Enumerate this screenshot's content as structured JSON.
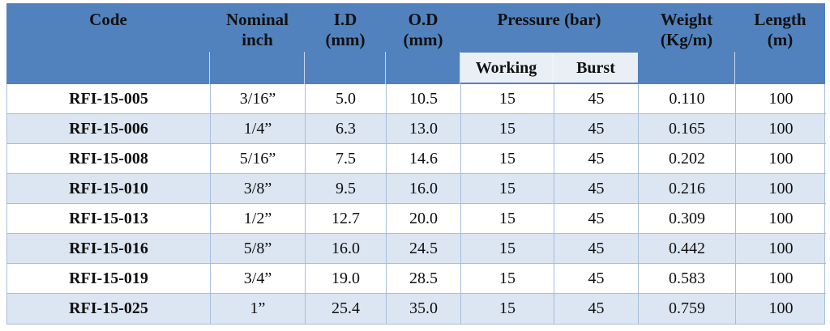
{
  "table": {
    "title": "hose-specification-table",
    "columns": {
      "code": {
        "label": "Code"
      },
      "nominal": {
        "line1": "Nominal",
        "line2": "inch"
      },
      "id": {
        "line1": "I.D",
        "line2": "(mm)"
      },
      "od": {
        "line1": "O.D",
        "line2": "(mm)"
      },
      "pressure": {
        "label": "Pressure (bar)",
        "sub": {
          "working": "Working",
          "burst": "Burst"
        }
      },
      "weight": {
        "line1": "Weight",
        "line2": "(Kg/m)"
      },
      "length": {
        "line1": "Length",
        "line2": "(m)"
      }
    },
    "rows": [
      {
        "code": "RFI-15-005",
        "nominal_inch": "3/16”",
        "id_mm": "5.0",
        "od_mm": "10.5",
        "working": "15",
        "burst": "45",
        "weight_kg_m": "0.110",
        "length_m": "100"
      },
      {
        "code": "RFI-15-006",
        "nominal_inch": "1/4”",
        "id_mm": "6.3",
        "od_mm": "13.0",
        "working": "15",
        "burst": "45",
        "weight_kg_m": "0.165",
        "length_m": "100"
      },
      {
        "code": "RFI-15-008",
        "nominal_inch": "5/16”",
        "id_mm": "7.5",
        "od_mm": "14.6",
        "working": "15",
        "burst": "45",
        "weight_kg_m": "0.202",
        "length_m": "100"
      },
      {
        "code": "RFI-15-010",
        "nominal_inch": "3/8”",
        "id_mm": "9.5",
        "od_mm": "16.0",
        "working": "15",
        "burst": "45",
        "weight_kg_m": "0.216",
        "length_m": "100"
      },
      {
        "code": "RFI-15-013",
        "nominal_inch": "1/2”",
        "id_mm": "12.7",
        "od_mm": "20.0",
        "working": "15",
        "burst": "45",
        "weight_kg_m": "0.309",
        "length_m": "100"
      },
      {
        "code": "RFI-15-016",
        "nominal_inch": "5/8”",
        "id_mm": "16.0",
        "od_mm": "24.5",
        "working": "15",
        "burst": "45",
        "weight_kg_m": "0.442",
        "length_m": "100"
      },
      {
        "code": "RFI-15-019",
        "nominal_inch": "3/4”",
        "id_mm": "19.0",
        "od_mm": "28.5",
        "working": "15",
        "burst": "45",
        "weight_kg_m": "0.583",
        "length_m": "100"
      },
      {
        "code": "RFI-15-025",
        "nominal_inch": "1”",
        "id_mm": "25.4",
        "od_mm": "35.0",
        "working": "15",
        "burst": "45",
        "weight_kg_m": "0.759",
        "length_m": "100"
      }
    ],
    "colors": {
      "header_bg": "#5182be",
      "subheader_bg": "#eaeff6",
      "row_bg": "#ffffff",
      "row_alt_bg": "#dce6f2",
      "grid": "#a5bedd",
      "text": "#0f0f0f"
    }
  }
}
